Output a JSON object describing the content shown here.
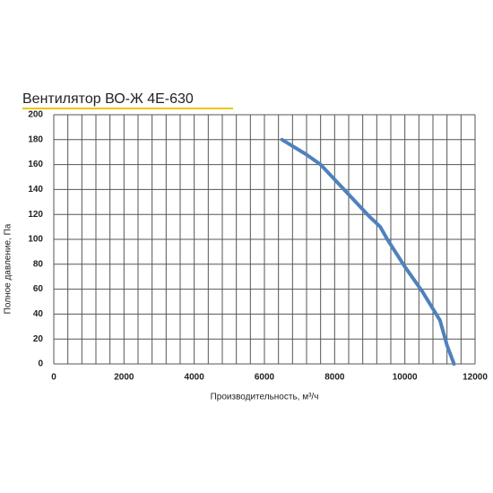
{
  "chart_data": {
    "type": "line",
    "title": "Вентилятор ВО-Ж 4Е-630",
    "x_label": "Производительность, м³/ч",
    "y_label": "Полное давление, Па",
    "x": [
      6500,
      7200,
      7600,
      8000,
      8500,
      9000,
      9300,
      9500,
      10000,
      10500,
      11000,
      11200,
      11400
    ],
    "series": [
      {
        "name": "ВО-Ж 4Е-630",
        "color": "#4f81bd",
        "values": [
          180,
          168,
          160,
          148,
          133,
          118,
          110,
          100,
          78,
          58,
          35,
          15,
          0
        ]
      }
    ],
    "xlim": [
      0,
      12000
    ],
    "xticks": [
      0,
      2000,
      4000,
      6000,
      8000,
      10000,
      12000
    ],
    "xminor_ticks": [
      0,
      400,
      800,
      1200,
      1600,
      2000,
      2400,
      2800,
      3200,
      3600,
      4000,
      4400,
      4800,
      5200,
      5600,
      6000,
      6400,
      6800,
      7200,
      7600,
      8000,
      8400,
      8800,
      9200,
      9600,
      10000,
      10400,
      10800,
      11200,
      11600,
      12000
    ],
    "ylim": [
      0,
      200
    ],
    "yticks": [
      0,
      20,
      40,
      60,
      80,
      100,
      120,
      140,
      160,
      180,
      200
    ],
    "grid": true
  }
}
